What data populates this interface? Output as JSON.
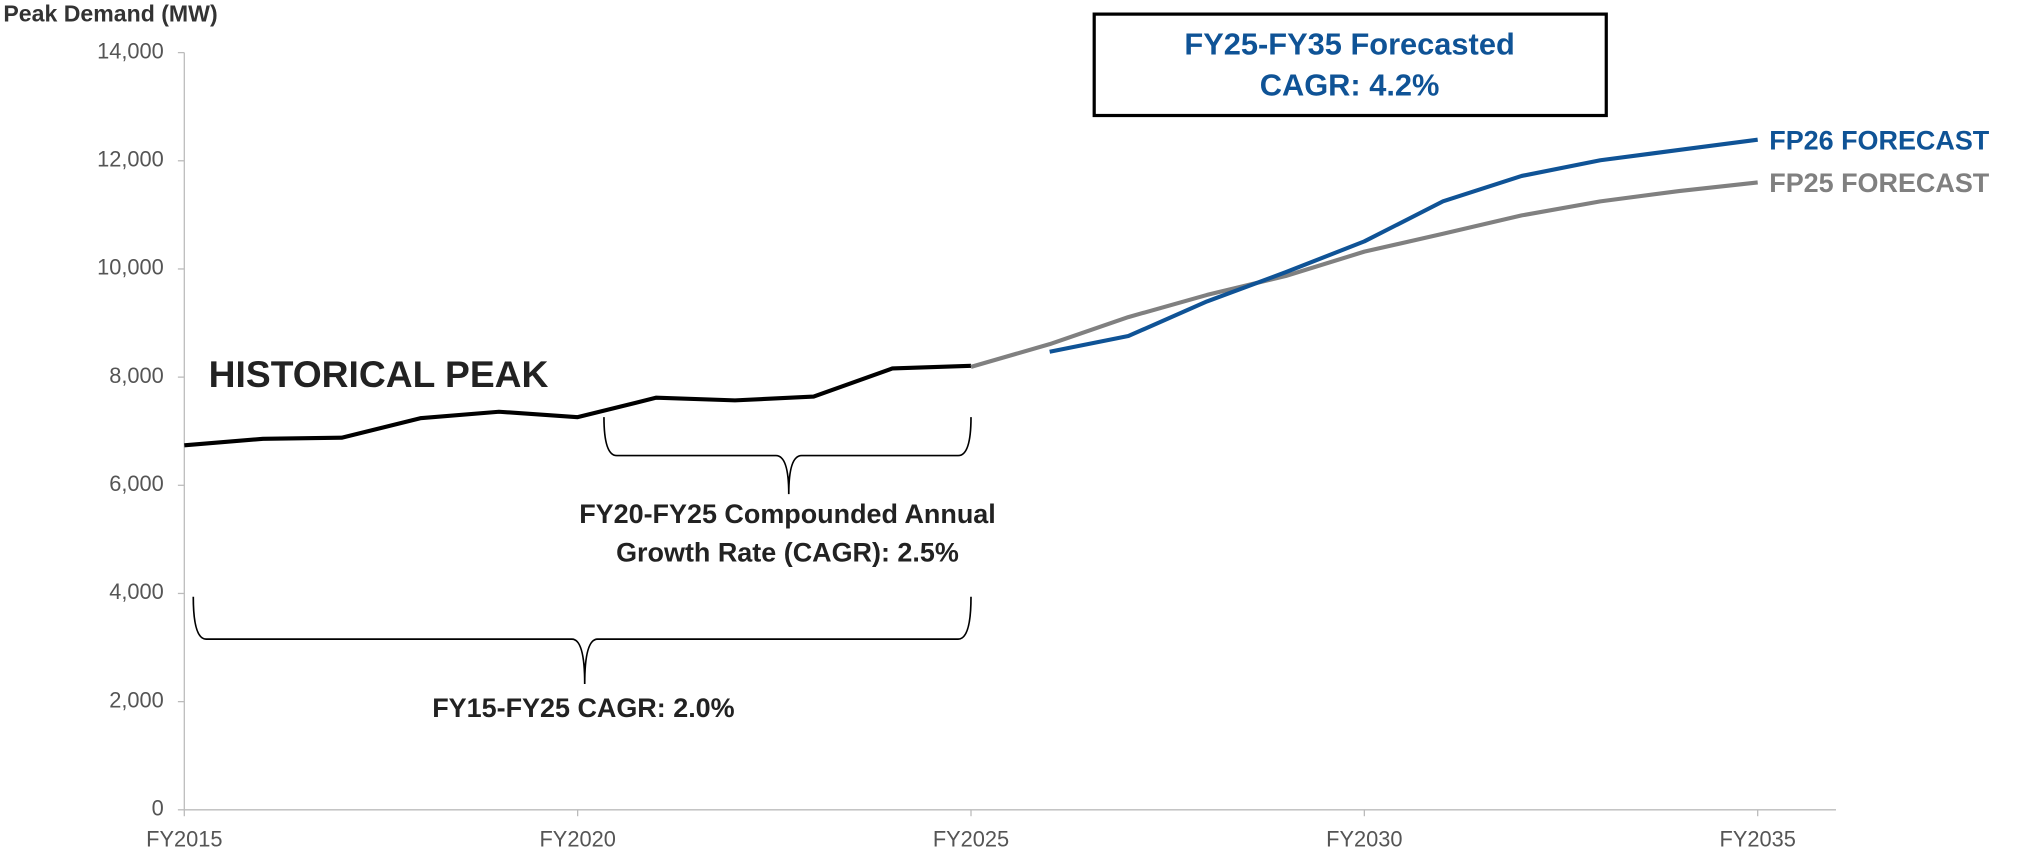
{
  "chart_data": {
    "type": "line",
    "y_label": "Peak Demand (MW)",
    "xlim": [
      2015,
      2036
    ],
    "ylim": [
      0,
      14000
    ],
    "xticks": [
      {
        "value": 2015,
        "label": "FY2015"
      },
      {
        "value": 2020,
        "label": "FY2020"
      },
      {
        "value": 2025,
        "label": "FY2025"
      },
      {
        "value": 2030,
        "label": "FY2030"
      },
      {
        "value": 2035,
        "label": "FY2035"
      }
    ],
    "yticks": [
      0,
      {
        "value": 2000,
        "label": "2,000"
      },
      {
        "value": 4000,
        "label": "4,000"
      },
      {
        "value": 6000,
        "label": "6,000"
      },
      {
        "value": 8000,
        "label": "8,000"
      },
      {
        "value": 10000,
        "label": "10,000"
      },
      {
        "value": 12000,
        "label": "12,000"
      },
      {
        "value": 14000,
        "label": "14,000"
      }
    ],
    "series": [
      {
        "color": "#000000",
        "x": [
          2015,
          2016,
          2017,
          2018,
          2019,
          2020,
          2021,
          2022,
          2023,
          2024,
          2025
        ],
        "values": [
          6740,
          6860,
          6880,
          7240,
          7360,
          7260,
          7620,
          7570,
          7640,
          8160,
          8210
        ]
      },
      {
        "name": "FP25 FORECAST",
        "color": "#808080",
        "x": [
          2025,
          2026,
          2027,
          2028,
          2029,
          2030,
          2031,
          2032,
          2033,
          2034,
          2035
        ],
        "values": [
          8190,
          8610,
          9110,
          9520,
          9870,
          10320,
          10650,
          10990,
          11250,
          11440,
          11600
        ]
      },
      {
        "name": "FP26 FORECAST",
        "color": "#0f5396",
        "x": [
          2026,
          2027,
          2028,
          2029,
          2030,
          2031,
          2032,
          2033,
          2034,
          2035
        ],
        "values": [
          8470,
          8760,
          9400,
          9940,
          10510,
          11250,
          11720,
          12010,
          12200,
          12390
        ]
      }
    ],
    "annotations": {
      "historical": "HISTORICAL PEAK",
      "cagr_5yr": [
        "FY20-FY25 Compounded Annual",
        "Growth Rate (CAGR): 2.5%"
      ],
      "cagr_10yr": "FY15-FY25 CAGR: 2.0%",
      "forecast_box": [
        "FY25-FY35 Forecasted",
        "CAGR: 4.2%"
      ]
    }
  }
}
